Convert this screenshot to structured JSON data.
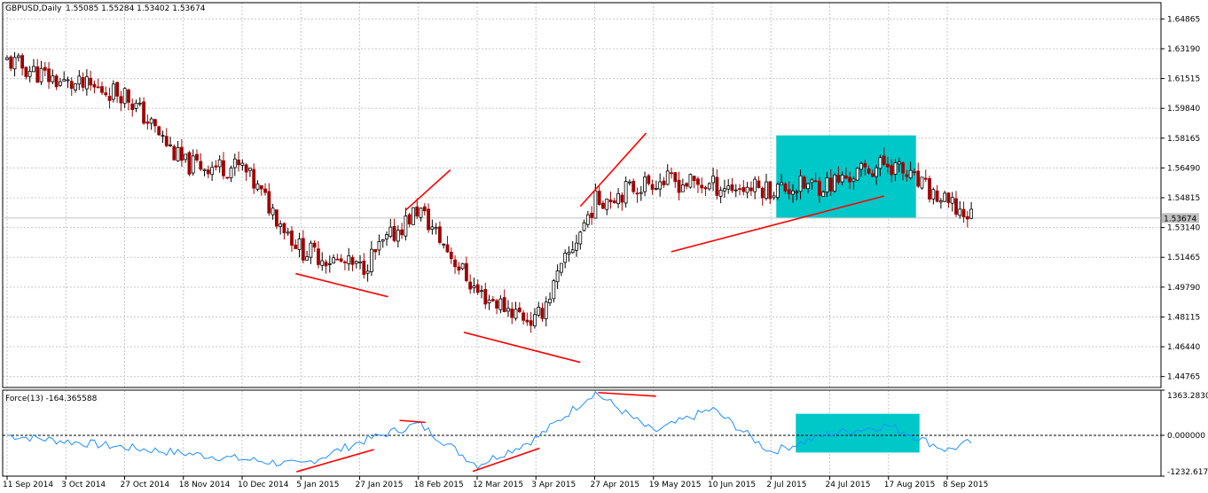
{
  "main_chart": {
    "symbol_header": "GBPUSD,Daily",
    "ohlc_text": "1.55085 1.55284 1.53402 1.53674",
    "price_labels": [
      "1.64865",
      "1.63190",
      "1.61515",
      "1.59840",
      "1.58165",
      "1.56490",
      "1.54815",
      "1.53140",
      "1.51465",
      "1.49790",
      "1.48115",
      "1.46440",
      "1.44765"
    ],
    "current_price_label": "1.53674",
    "colors": {
      "bull": "#000000",
      "bear": "#a00000",
      "trendline": "#ff0000",
      "box": "#00c8c8",
      "current_line": "#c0c0c0"
    }
  },
  "indicator": {
    "header": "Force(13) -164.365588",
    "axis_labels": [
      "1363.28309",
      "0.000000",
      "-1232.61789"
    ],
    "colors": {
      "line": "#1e90ff",
      "zero": "#000000",
      "box": "#00c8c8"
    }
  },
  "time_axis": {
    "labels": [
      "11 Sep 2014",
      "3 Oct 2014",
      "27 Oct 2014",
      "18 Nov 2014",
      "10 Dec 2014",
      "5 Jan 2015",
      "27 Jan 2015",
      "18 Feb 2015",
      "12 Mar 2015",
      "3 Apr 2015",
      "27 Apr 2015",
      "19 May 2015",
      "10 Jun 2015",
      "2 Jul 2015",
      "24 Jul 2015",
      "17 Aug 2015",
      "8 Sep 2015"
    ]
  },
  "chart_data": [
    {
      "type": "candlestick",
      "title": "GBPUSD,Daily",
      "series": [
        {
          "name": "GBPUSD",
          "close_path": [
            [
              "11 Sep 2014",
              1.625
            ],
            [
              "3 Oct 2014",
              1.612
            ],
            [
              "27 Oct 2014",
              1.607
            ],
            [
              "18 Nov 2014",
              1.567
            ],
            [
              "10 Dec 2014",
              1.565
            ],
            [
              "5 Jan 2015",
              1.519
            ],
            [
              "27 Jan 2015",
              1.508
            ],
            [
              "18 Feb 2015",
              1.542
            ],
            [
              "12 Mar 2015",
              1.495
            ],
            [
              "3 Apr 2015",
              1.478
            ],
            [
              "27 Apr 2015",
              1.546
            ],
            [
              "19 May 2015",
              1.558
            ],
            [
              "10 Jun 2015",
              1.555
            ],
            [
              "2 Jul 2015",
              1.553
            ],
            [
              "24 Jul 2015",
              1.556
            ],
            [
              "17 Aug 2015",
              1.568
            ],
            [
              "8 Sep 2015",
              1.544
            ],
            [
              "15 Sep 2015",
              1.53674
            ]
          ]
        }
      ],
      "ylim": [
        1.4415,
        1.6578
      ],
      "last_ohlc": {
        "open": 1.55085,
        "high": 1.55284,
        "low": 1.53402,
        "close": 1.53674
      },
      "grid": true
    },
    {
      "type": "line",
      "title": "Force(13) -164.365588",
      "series": [
        {
          "name": "Force(13)",
          "path": [
            [
              "11 Sep 2014",
              0
            ],
            [
              "5 Jan 2015",
              -900
            ],
            [
              "27 Jan 2015",
              -200
            ],
            [
              "18 Feb 2015",
              350
            ],
            [
              "12 Mar 2015",
              -900
            ],
            [
              "3 Apr 2015",
              -100
            ],
            [
              "27 Apr 2015",
              1300
            ],
            [
              "19 May 2015",
              100
            ],
            [
              "10 Jun 2015",
              800
            ],
            [
              "2 Jul 2015",
              -500
            ],
            [
              "24 Jul 2015",
              50
            ],
            [
              "17 Aug 2015",
              300
            ],
            [
              "8 Sep 2015",
              -450
            ],
            [
              "15 Sep 2015",
              -164.37
            ]
          ]
        }
      ],
      "ylim": [
        -1232.61789,
        1363.28309
      ],
      "grid": true
    }
  ]
}
